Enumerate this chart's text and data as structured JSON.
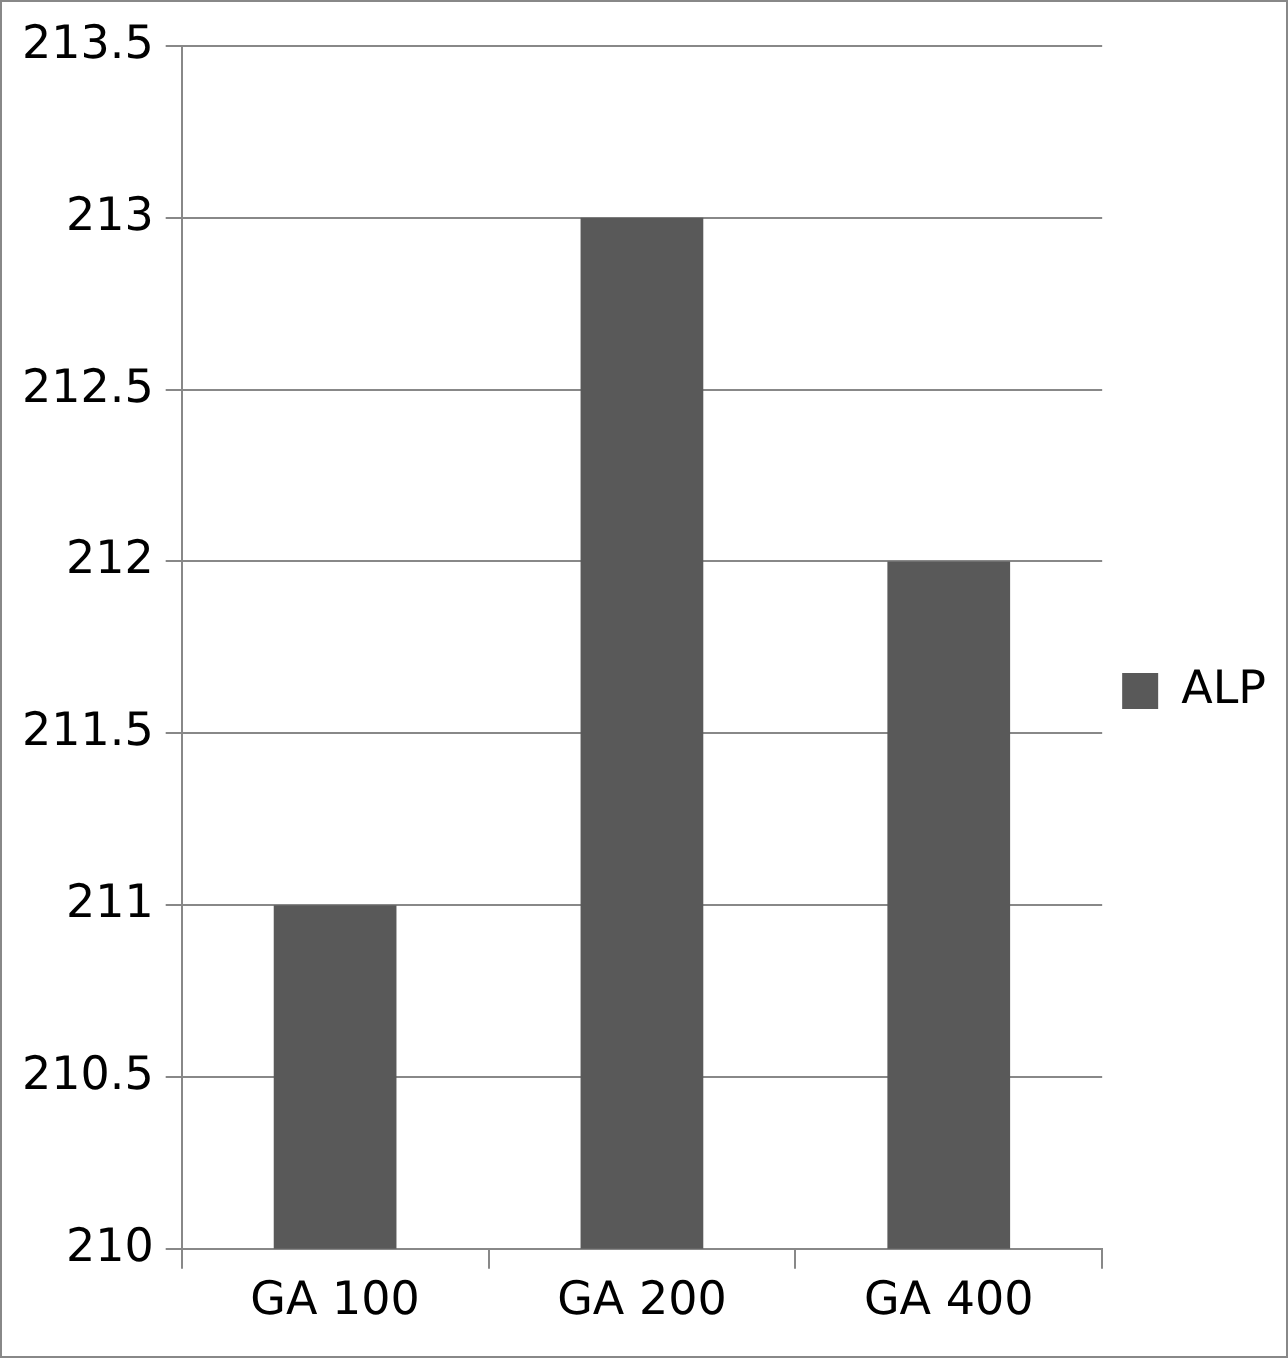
{
  "chart_data": {
    "type": "bar",
    "categories": [
      "GA 100",
      "GA 200",
      "GA 400"
    ],
    "series": [
      {
        "name": "ALP",
        "color": "#595959",
        "values": [
          211,
          213,
          212
        ]
      }
    ],
    "ylim": [
      210,
      213.5
    ],
    "yticks": [
      210,
      210.5,
      211,
      211.5,
      212,
      212.5,
      213,
      213.5
    ],
    "grid": "y",
    "legend": "right"
  }
}
